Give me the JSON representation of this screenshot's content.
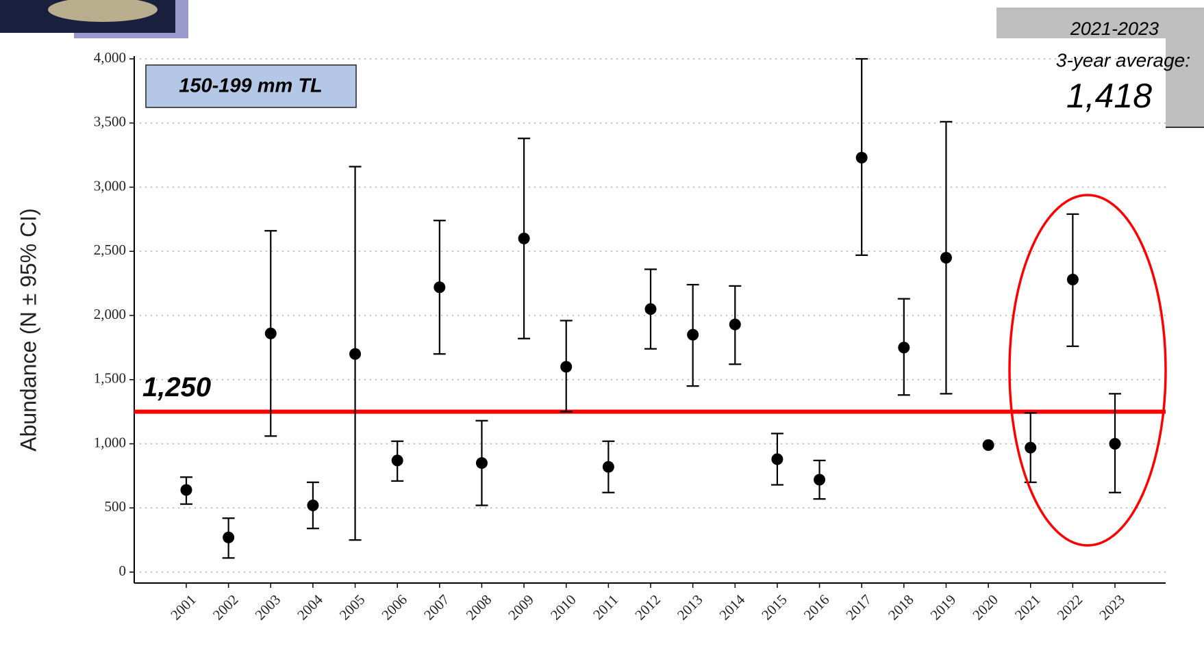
{
  "chart_data": {
    "type": "errorbar",
    "y_label": "Abundance (N ± 95% CI)",
    "categories": [
      "2001",
      "2002",
      "2003",
      "2004",
      "2005",
      "2006",
      "2007",
      "2008",
      "2009",
      "2010",
      "2011",
      "2012",
      "2013",
      "2014",
      "2015",
      "2016",
      "2017",
      "2018",
      "2019",
      "2020",
      "2021",
      "2022",
      "2023"
    ],
    "series": [
      {
        "color": "#000000",
        "values": [
          640,
          270,
          1860,
          520,
          1700,
          870,
          2220,
          850,
          2600,
          1600,
          820,
          2050,
          1850,
          1930,
          880,
          720,
          3230,
          1750,
          2450,
          990,
          970,
          2280,
          1000
        ],
        "lower": [
          530,
          110,
          1060,
          340,
          250,
          710,
          1700,
          520,
          1820,
          1250,
          620,
          1740,
          1450,
          1620,
          680,
          570,
          2470,
          1380,
          1390,
          null,
          700,
          1760,
          620
        ],
        "upper": [
          740,
          420,
          2660,
          700,
          3160,
          1020,
          2740,
          1180,
          3380,
          1960,
          1020,
          2360,
          2240,
          2230,
          1080,
          870,
          4000,
          2130,
          3510,
          null,
          1240,
          2790,
          1390
        ]
      }
    ],
    "ylim": [
      0,
      4000
    ],
    "yticks": [
      {
        "value": 0,
        "label": "0"
      },
      {
        "value": 500,
        "label": "500"
      },
      {
        "value": 1000,
        "label": "1,000"
      },
      {
        "value": 1500,
        "label": "1,500"
      },
      {
        "value": 2000,
        "label": "2,000"
      },
      {
        "value": 2500,
        "label": "2,500"
      },
      {
        "value": 3000,
        "label": "3,000"
      },
      {
        "value": 3500,
        "label": "3,500"
      },
      {
        "value": 4000,
        "label": "4,000"
      }
    ],
    "grid": true,
    "reference_line": {
      "value": 1250,
      "label": "1,250",
      "color": "#ff0000"
    },
    "size_class": "150-199 mm TL",
    "average_box": {
      "period": "2021-2023",
      "caption": "3-year average:",
      "value": 1418,
      "label": "1,418"
    }
  }
}
